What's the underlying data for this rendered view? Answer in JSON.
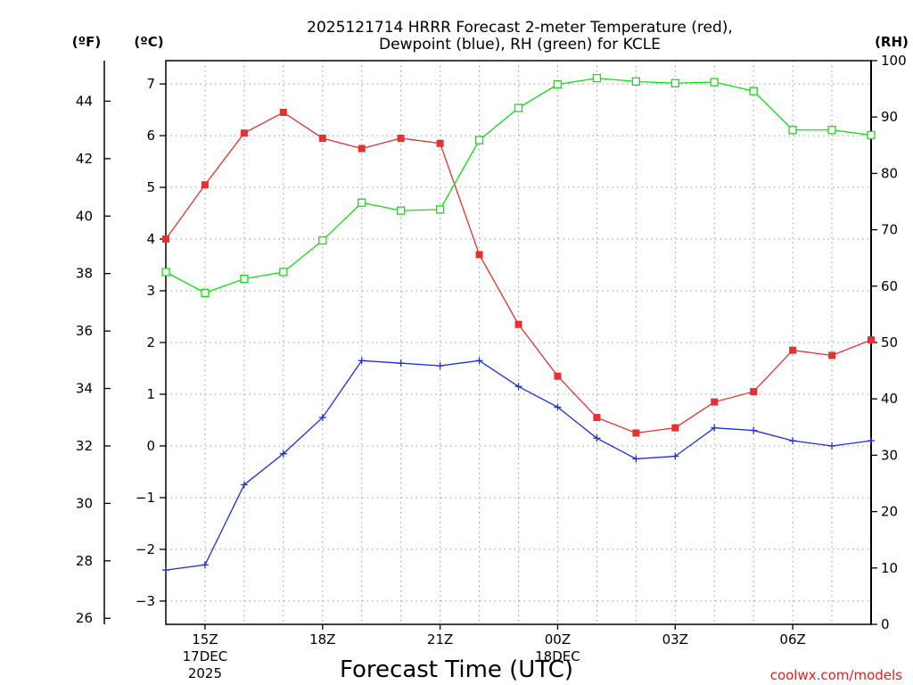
{
  "chart_data": {
    "type": "line",
    "title": [
      "2025121714 HRRR Forecast 2-meter Temperature (red),",
      "Dewpoint (blue), RH (green) for KCLE"
    ],
    "xlabel": "Forecast Time (UTC)",
    "credit": "coolwx.com/models",
    "units": {
      "fahrenheit": "(ºF)",
      "celsius": "(ºC)",
      "rh": "(RH)"
    },
    "x_hours": [
      14,
      15,
      16,
      17,
      18,
      19,
      20,
      21,
      22,
      23,
      24,
      25,
      26,
      27,
      28,
      29,
      30,
      31,
      32
    ],
    "x_ticks": [
      {
        "hour": 15,
        "lines": [
          "15Z",
          "17DEC",
          "2025"
        ]
      },
      {
        "hour": 18,
        "lines": [
          "18Z"
        ]
      },
      {
        "hour": 21,
        "lines": [
          "21Z"
        ]
      },
      {
        "hour": 24,
        "lines": [
          "00Z",
          "18DEC"
        ]
      },
      {
        "hour": 27,
        "lines": [
          "03Z"
        ]
      },
      {
        "hour": 30,
        "lines": [
          "06Z"
        ]
      }
    ],
    "celsius_range": [
      -3.45,
      7.45
    ],
    "celsius_ticks": [
      "−3",
      "−2",
      "−1",
      "0",
      "1",
      "2",
      "3",
      "4",
      "5",
      "6",
      "7"
    ],
    "fahrenheit_ticks": [
      "26",
      "28",
      "30",
      "32",
      "34",
      "36",
      "38",
      "40",
      "42",
      "44"
    ],
    "rh_range": [
      0,
      100
    ],
    "rh_ticks": [
      "0",
      "10",
      "20",
      "30",
      "40",
      "50",
      "60",
      "70",
      "80",
      "90",
      "100"
    ],
    "grid": true,
    "series": [
      {
        "name": "Temperature",
        "axis": "celsius",
        "color": "#e83030",
        "marker": "filled-square",
        "values": [
          4.0,
          5.05,
          6.05,
          6.45,
          5.95,
          5.75,
          5.95,
          5.85,
          3.7,
          2.35,
          1.35,
          0.55,
          0.25,
          0.35,
          0.85,
          1.05,
          1.85,
          1.75,
          2.05
        ]
      },
      {
        "name": "Dewpoint",
        "axis": "celsius",
        "color": "#1a30e0",
        "marker": "plus",
        "values": [
          -2.4,
          -2.3,
          -0.75,
          -0.15,
          0.55,
          1.65,
          1.6,
          1.55,
          1.65,
          1.15,
          0.75,
          0.15,
          -0.25,
          -0.2,
          0.35,
          0.3,
          0.1,
          0.0,
          0.1
        ]
      },
      {
        "name": "RH",
        "axis": "rh",
        "color": "#10e010",
        "marker": "open-square",
        "values": [
          62.5,
          58.8,
          61.3,
          62.5,
          68.1,
          74.8,
          73.4,
          73.6,
          85.9,
          91.6,
          95.8,
          96.9,
          96.3,
          96.0,
          96.2,
          94.6,
          87.7,
          87.7,
          86.8
        ]
      }
    ]
  }
}
